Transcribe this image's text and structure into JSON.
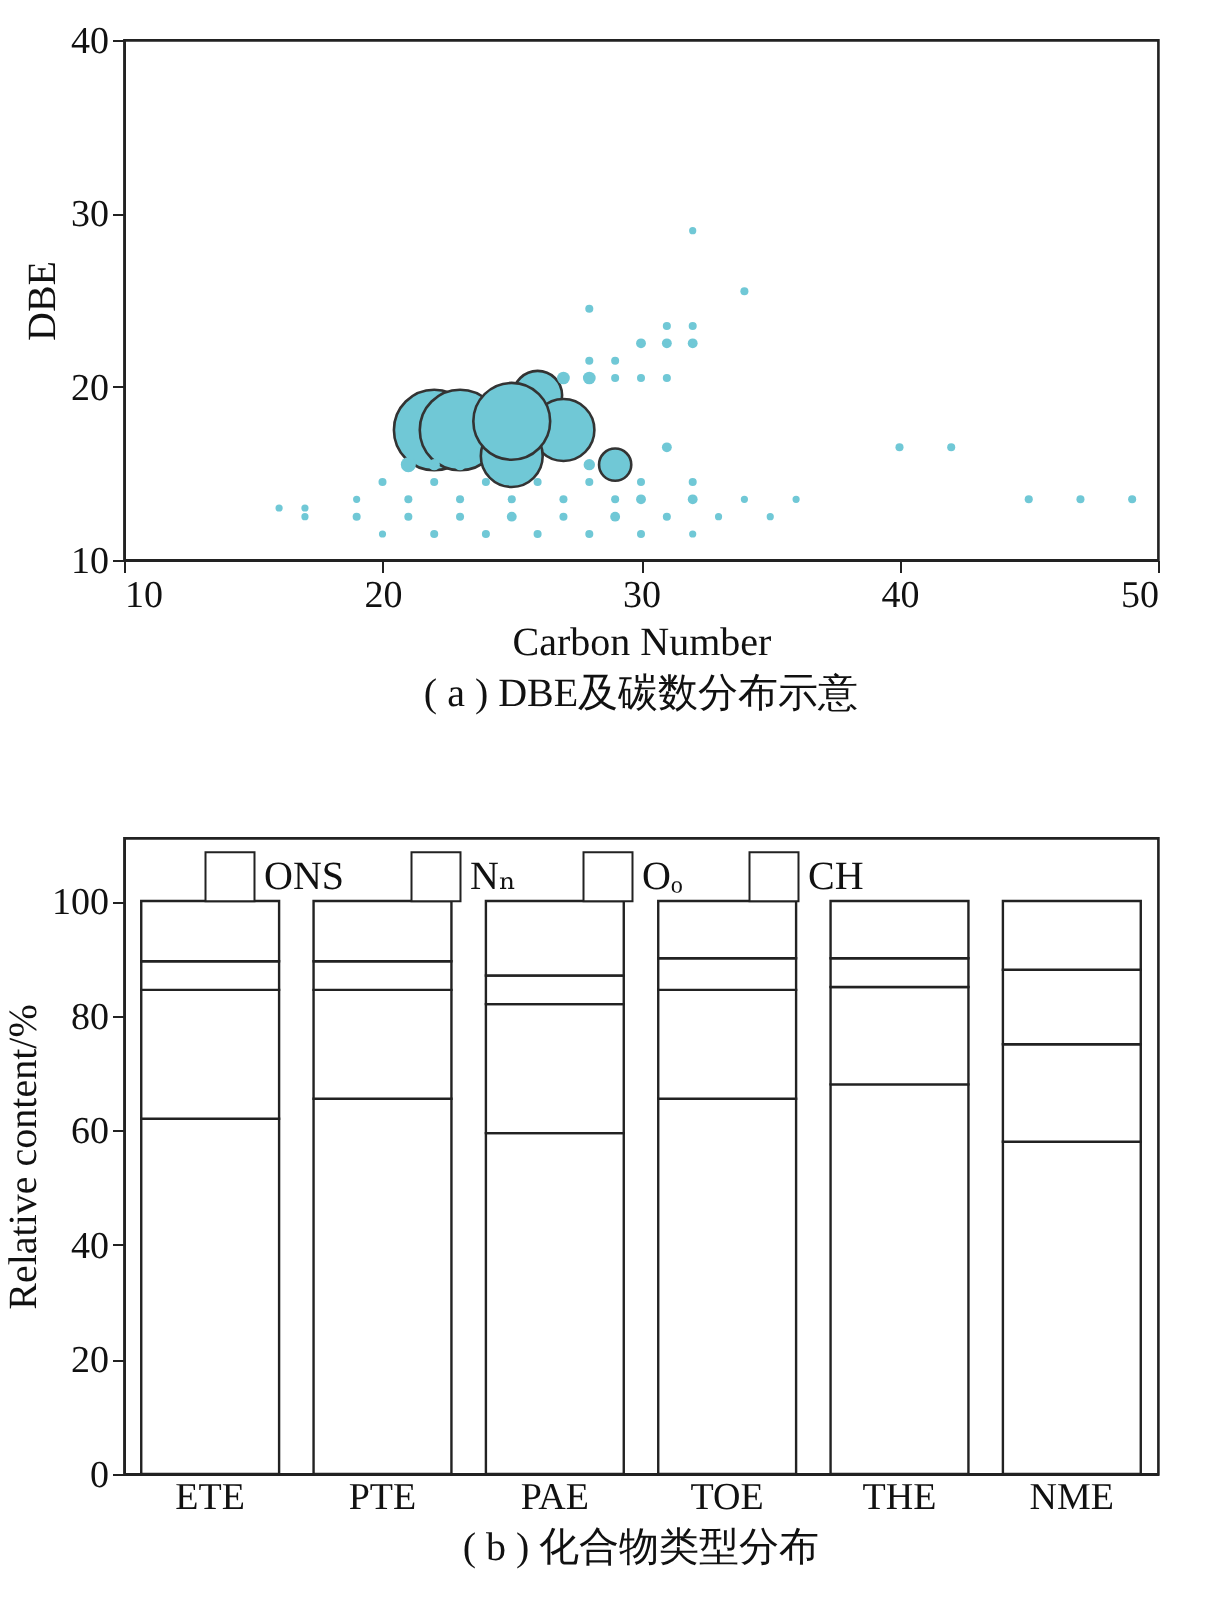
{
  "chart_data": [
    {
      "type": "bubble",
      "xlabel": "Carbon Number",
      "ylabel": "DBE",
      "annotations": [
        "( a ) DBE及碳数分布示意"
      ],
      "xlim": [
        10,
        50
      ],
      "ylim": [
        10,
        40
      ],
      "xticks": [
        10,
        20,
        30,
        40,
        50
      ],
      "yticks": [
        10,
        20,
        30,
        40
      ],
      "grid": false,
      "legend": false,
      "color": "#70c8d6",
      "x": [
        22,
        23,
        26,
        27,
        25,
        25,
        29,
        21,
        22,
        23,
        28,
        27,
        28,
        29,
        30,
        31,
        28,
        29,
        30,
        31,
        32,
        31,
        32,
        28,
        34,
        32,
        31,
        20,
        22,
        24,
        26,
        28,
        30,
        32,
        19,
        21,
        23,
        25,
        27,
        29,
        30,
        32,
        34,
        36,
        17,
        19,
        21,
        23,
        25,
        27,
        29,
        31,
        33,
        35,
        20,
        22,
        24,
        26,
        28,
        30,
        32,
        16,
        17,
        45,
        47,
        49,
        40,
        42
      ],
      "values": [
        17.5,
        17.5,
        19.5,
        17.5,
        16,
        18,
        15.5,
        15.5,
        15.5,
        15.5,
        15.5,
        20.5,
        20.5,
        20.5,
        20.5,
        20.5,
        21.5,
        21.5,
        22.5,
        22.5,
        22.5,
        23.5,
        23.5,
        24.5,
        25.5,
        29,
        16.5,
        14.5,
        14.5,
        14.5,
        14.5,
        14.5,
        14.5,
        14.5,
        13.5,
        13.5,
        13.5,
        13.5,
        13.5,
        13.5,
        13.5,
        13.5,
        13.5,
        13.5,
        12.5,
        12.5,
        12.5,
        12.5,
        12.5,
        12.5,
        12.5,
        12.5,
        12.5,
        12.5,
        11.5,
        11.5,
        11.5,
        11.5,
        11.5,
        11.5,
        11.5,
        13,
        13,
        13.5,
        13.5,
        13.5,
        16.5,
        16.5
      ],
      "sizes": [
        1,
        1,
        0.37,
        0.59,
        0.59,
        0.91,
        0.16,
        0.035,
        0.02,
        0.02,
        0.02,
        0.025,
        0.025,
        0.01,
        0.01,
        0.01,
        0.01,
        0.01,
        0.015,
        0.015,
        0.015,
        0.01,
        0.01,
        0.01,
        0.01,
        0.008,
        0.015,
        0.01,
        0.01,
        0.01,
        0.01,
        0.01,
        0.01,
        0.01,
        0.008,
        0.01,
        0.01,
        0.01,
        0.01,
        0.01,
        0.015,
        0.015,
        0.008,
        0.008,
        0.008,
        0.01,
        0.01,
        0.01,
        0.015,
        0.01,
        0.015,
        0.01,
        0.008,
        0.008,
        0.008,
        0.01,
        0.01,
        0.01,
        0.01,
        0.01,
        0.008,
        0.008,
        0.008,
        0.01,
        0.01,
        0.01,
        0.01,
        0.01
      ]
    },
    {
      "type": "bar",
      "stacked": true,
      "ylabel": "Relative content/%",
      "annotations": [
        "( b ) 化合物类型分布"
      ],
      "categories": [
        "ETE",
        "PTE",
        "PAE",
        "TOE",
        "THE",
        "NME"
      ],
      "ylim": [
        0,
        111
      ],
      "yticks": [
        0,
        20,
        40,
        60,
        80,
        100
      ],
      "grid": false,
      "legend": "top",
      "series": [
        {
          "name": "CH",
          "color": "#ffffff",
          "values": [
            62,
            65.5,
            59.5,
            65.5,
            68,
            58
          ]
        },
        {
          "name": "Oₒ",
          "color": "#ffffff",
          "values": [
            22.5,
            19,
            22.5,
            19,
            17,
            17
          ]
        },
        {
          "name": "Nₙ",
          "color": "#ffffff",
          "values": [
            5,
            5,
            5,
            5.5,
            5,
            13
          ]
        },
        {
          "name": "ONS",
          "color": "#ffffff",
          "values": [
            10.5,
            10.5,
            13,
            10,
            10,
            12
          ]
        }
      ]
    }
  ]
}
